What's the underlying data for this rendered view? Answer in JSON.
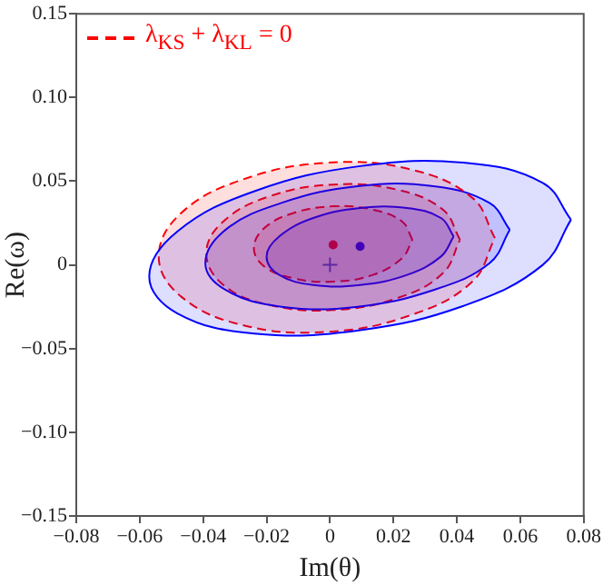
{
  "chart_data": {
    "type": "area",
    "xlabel": "Im(θ)",
    "ylabel": "Re(ω)",
    "xlim": [
      -0.08,
      0.08
    ],
    "ylim": [
      -0.15,
      0.15
    ],
    "xticks": [
      {
        "value": -0.08,
        "label": "−0.08"
      },
      {
        "value": -0.06,
        "label": "−0.06"
      },
      {
        "value": -0.04,
        "label": "−0.04"
      },
      {
        "value": -0.02,
        "label": "−0.02"
      },
      0,
      0.02,
      0.04,
      0.06,
      0.08
    ],
    "yticks": [
      {
        "value": -0.15,
        "label": "−0.15"
      },
      {
        "value": -0.1,
        "label": "−0.10"
      },
      {
        "value": -0.05,
        "label": "−0.05"
      },
      0,
      0.05,
      {
        "value": 0.1,
        "label": "0.10"
      },
      0.15
    ],
    "grid": false,
    "legend": "top left",
    "line_style": "solid",
    "series": [
      {
        "color": "#0000ff",
        "x": [
          0.076,
          0.0671,
          0.0428,
          0.0095,
          -0.0238,
          -0.0481,
          -0.057,
          -0.0481,
          -0.0238,
          0.0095,
          0.0428,
          0.0671,
          0.076
        ],
        "values": [
          0.027,
          0.049,
          0.061,
          0.059,
          0.044,
          0.02,
          -0.007,
          -0.029,
          -0.041,
          -0.039,
          -0.024,
          0.0,
          0.027
        ]
      },
      {
        "color": "#ff0000",
        "line_style": "dashed",
        "name": "λ$_{KS}$ + λ$_{KL}$ = 0",
        "x": [
          0.052,
          0.0449,
          0.0255,
          -0.001,
          -0.0275,
          -0.0469,
          -0.054,
          -0.0469,
          -0.0275,
          -0.001,
          0.0255,
          0.0449,
          0.052
        ],
        "values": [
          0.016,
          0.04,
          0.057,
          0.061,
          0.051,
          0.031,
          0.005,
          -0.019,
          -0.036,
          -0.04,
          -0.03,
          -0.01,
          0.016
        ]
      },
      {
        "color": "#0000ff",
        "x": [
          0.0567,
          0.0503,
          0.0327,
          0.0087,
          -0.0153,
          -0.0329,
          -0.0393,
          -0.0329,
          -0.0153,
          0.0087,
          0.0327,
          0.0503,
          0.0567
        ],
        "values": [
          0.021,
          0.037,
          0.047,
          0.047,
          0.037,
          0.021,
          0.001,
          -0.015,
          -0.025,
          -0.025,
          -0.015,
          0.001,
          0.021
        ]
      },
      {
        "color": "#ff0000",
        "line_style": "dashed",
        "x": [
          0.041,
          0.0356,
          0.021,
          0.001,
          -0.019,
          -0.0336,
          -0.039,
          -0.0336,
          -0.019,
          0.001,
          0.021,
          0.0356,
          0.041
        ],
        "values": [
          0.015,
          0.033,
          0.045,
          0.048,
          0.041,
          0.026,
          0.007,
          -0.012,
          -0.024,
          -0.027,
          -0.02,
          -0.005,
          0.015
        ]
      },
      {
        "color": "#0000ff",
        "x": [
          0.039,
          0.035,
          0.0243,
          0.0095,
          -0.0053,
          -0.016,
          -0.02,
          -0.016,
          -0.0053,
          0.0095,
          0.0243,
          0.035,
          0.039
        ],
        "values": [
          0.017,
          0.028,
          0.034,
          0.034,
          0.028,
          0.017,
          0.005,
          -0.006,
          -0.012,
          -0.012,
          -0.006,
          0.005,
          0.017
        ]
      },
      {
        "color": "#ff0000",
        "line_style": "dashed",
        "x": [
          0.026,
          0.0227,
          0.0135,
          0.001,
          -0.0115,
          -0.0207,
          -0.024,
          -0.0207,
          -0.0115,
          0.001,
          0.0135,
          0.0227,
          0.026
        ],
        "values": [
          0.015,
          0.026,
          0.033,
          0.035,
          0.031,
          0.022,
          0.01,
          -0.001,
          -0.008,
          -0.01,
          -0.006,
          0.004,
          0.015
        ]
      },
      {
        "type": "scatter",
        "color": "#ff0000",
        "marker": "circle",
        "x": [
          0.001
        ],
        "values": [
          0.012
        ]
      },
      {
        "type": "scatter",
        "color": "#0000ff",
        "marker": "circle",
        "x": [
          0.0095
        ],
        "values": [
          0.011
        ]
      },
      {
        "type": "scatter",
        "color": "#4060c0",
        "marker": "cross",
        "x": [
          0
        ],
        "values": [
          0
        ]
      }
    ]
  }
}
